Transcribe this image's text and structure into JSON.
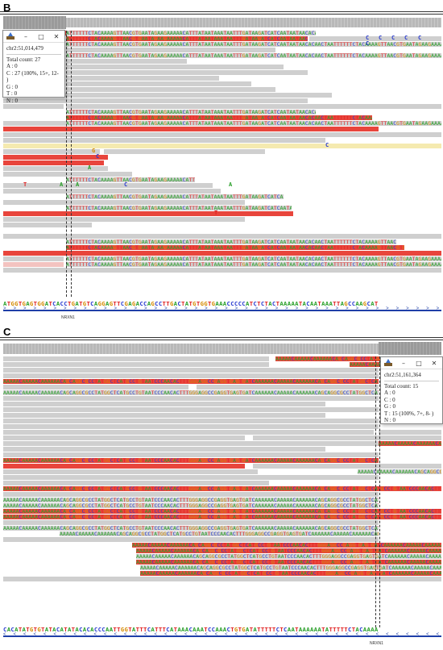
{
  "panel_b": {
    "label": "B",
    "popup": {
      "locus": "chr2:51,014,479",
      "total": "Total count: 27",
      "a": "A : 0",
      "c": "C : 27 (100%, 15+, 12- )",
      "g": "G : 0",
      "t": "T : 0",
      "n": "N : 0"
    },
    "reference_sequence": "ATGGTGAGTGGATCACCTGATGTCAGGAGTTCGAGACCAGCCTTGACTATGTGGTGAAACCCCCATCTCTACTAAAAATACAATAAATTAGCCAAGCAT",
    "read_sequence": "ATTTTTTCTACAAAAGTTAACGTGAATAGAAGAAAAACATTTATAATAAATAATTTGATAAGATCATCAATAATAACACAACTA",
    "gene_label": "NRXN1"
  },
  "panel_c": {
    "label": "C",
    "popup": {
      "locus": "chr2:51,161,364",
      "total": "Total count: 15",
      "a": "A : 0",
      "c": "C : 0",
      "g": "G : 0",
      "t": "T : 15 (100%, 7+, 8- )",
      "n": "N : 0"
    },
    "reference_sequence": "CACATATGTGTATACATATACACACCCAATTGGTATTTCATTTCATAAACAAATCCAAACTGTGATATTTTTCTCAATAAAAAATATTTTTCTACAAAA",
    "read_sequence": "AAAAACAAAAACAAAAAACAGCAGGCGCCTATGGCTCATGCCTGTAATCCCAACACTTTGGGAGGCCGAGGTGAGTGATCA",
    "gene_label": "NRXN1"
  }
}
